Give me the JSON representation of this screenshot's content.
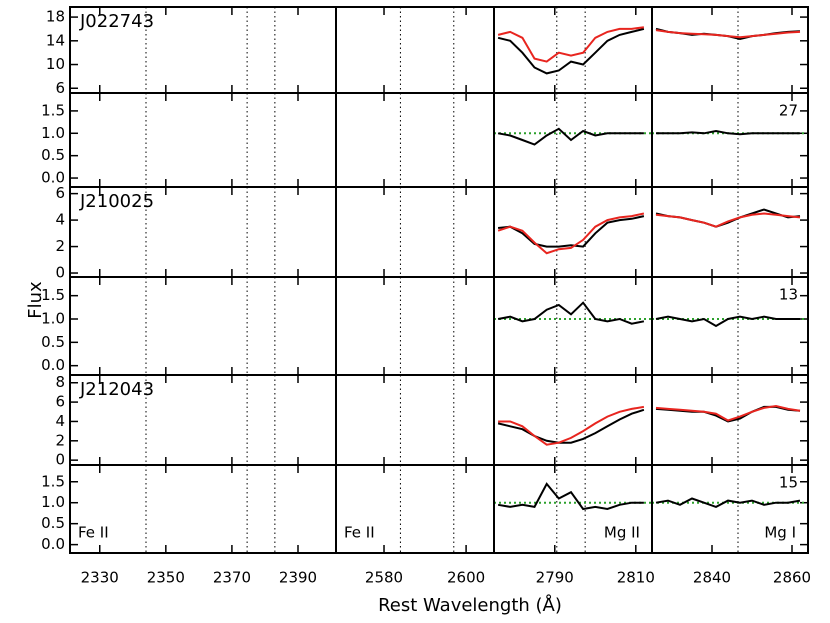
{
  "chart_data": {
    "type": "line",
    "xlabel": "Rest Wavelength (Å)",
    "ylabel": "Flux",
    "columns": [
      {
        "label": "Fe II",
        "label_corner": "bottom-left",
        "xlim": [
          2321,
          2401.5
        ],
        "xticks": [
          2330,
          2350,
          2370,
          2390
        ],
        "markers": [
          2344,
          2374.6,
          2383
        ]
      },
      {
        "label": "Fe II",
        "label_corner": "bottom-left",
        "xlim": [
          2568.3,
          2606.8
        ],
        "xticks": [
          2580,
          2600
        ],
        "markers": [
          2584,
          2597
        ]
      },
      {
        "label": "Mg II",
        "label_corner": "bottom-right",
        "xlim": [
          2775,
          2814
        ],
        "xticks": [
          2790,
          2810
        ],
        "markers": [
          2790.5,
          2797.5
        ],
        "x": [
          2776,
          2779,
          2782,
          2785,
          2788,
          2791,
          2794,
          2797,
          2800,
          2803,
          2806,
          2809,
          2812
        ]
      },
      {
        "label": "Mg I",
        "label_corner": "bottom-right",
        "xlim": [
          2825,
          2864
        ],
        "xticks": [
          2840,
          2860
        ],
        "markers": [
          2846.5
        ],
        "x": [
          2826,
          2829,
          2832,
          2835,
          2838,
          2841,
          2844,
          2847,
          2850,
          2853,
          2856,
          2859,
          2862
        ]
      }
    ],
    "rows": [
      {
        "name": "J022743",
        "snr": 27,
        "flux_ylim": [
          5.2,
          19.7
        ],
        "flux_yticks": [
          6,
          10,
          14,
          18
        ],
        "resid_ylim": [
          -0.2,
          1.9
        ],
        "resid_yticks": [
          {
            "value": 0,
            "label": "0.0"
          },
          0.5,
          {
            "value": 1,
            "label": "1.0"
          },
          1.5
        ],
        "reference": 1,
        "reference_color": "#2ca02c",
        "flux": [
          [],
          [],
          [
            {
              "color": "#000000",
              "values": [
                14.5,
                14,
                12,
                9.5,
                8.5,
                9,
                10.5,
                10,
                12,
                14,
                15,
                15.5,
                16
              ]
            },
            {
              "color": "#e8251f",
              "values": [
                15,
                15.5,
                14.5,
                11,
                10.5,
                12,
                11.5,
                12,
                14.5,
                15.5,
                16,
                16,
                16.3
              ]
            }
          ],
          [
            {
              "color": "#000000",
              "values": [
                16,
                15.5,
                15.3,
                15,
                15.2,
                15,
                14.8,
                14.3,
                14.8,
                15,
                15.3,
                15.5,
                15.6
              ]
            },
            {
              "color": "#e8251f",
              "values": [
                15.8,
                15.5,
                15.3,
                15.2,
                15.1,
                15,
                14.8,
                14.6,
                14.8,
                15,
                15.2,
                15.4,
                15.5
              ]
            }
          ]
        ],
        "residual": [
          [],
          [],
          [
            {
              "color": "#000000",
              "values": [
                1.0,
                0.95,
                0.85,
                0.75,
                0.95,
                1.1,
                0.85,
                1.05,
                0.95,
                1.0,
                1.0,
                1.0,
                1.0
              ]
            }
          ],
          [
            {
              "color": "#000000",
              "values": [
                1.0,
                1.0,
                1.0,
                1.02,
                1.0,
                1.05,
                1.0,
                0.98,
                1.0,
                1.0,
                1.0,
                1.0,
                1.0
              ]
            }
          ]
        ]
      },
      {
        "name": "J210025",
        "snr": 13,
        "flux_ylim": [
          -0.3,
          6.5
        ],
        "flux_yticks": [
          0,
          2,
          4,
          6
        ],
        "resid_ylim": [
          -0.2,
          1.9
        ],
        "resid_yticks": [
          {
            "value": 0,
            "label": "0.0"
          },
          0.5,
          {
            "value": 1,
            "label": "1.0"
          },
          1.5
        ],
        "reference": 1,
        "reference_color": "#2ca02c",
        "flux": [
          [],
          [],
          [
            {
              "color": "#000000",
              "values": [
                3.4,
                3.5,
                3,
                2.2,
                2,
                2,
                2.1,
                2,
                3,
                3.8,
                4,
                4.1,
                4.3
              ]
            },
            {
              "color": "#e8251f",
              "values": [
                3.2,
                3.5,
                3.2,
                2.3,
                1.5,
                1.8,
                1.9,
                2.5,
                3.5,
                4,
                4.2,
                4.3,
                4.5
              ]
            }
          ],
          [
            {
              "color": "#000000",
              "values": [
                4.5,
                4.3,
                4.2,
                4,
                3.8,
                3.5,
                3.8,
                4.2,
                4.5,
                4.8,
                4.5,
                4.2,
                4.3
              ]
            },
            {
              "color": "#e8251f",
              "values": [
                4.4,
                4.3,
                4.2,
                4.0,
                3.8,
                3.5,
                3.9,
                4.2,
                4.4,
                4.5,
                4.4,
                4.3,
                4.2
              ]
            }
          ]
        ],
        "residual": [
          [],
          [],
          [
            {
              "color": "#000000",
              "values": [
                1.0,
                1.05,
                0.95,
                1.0,
                1.2,
                1.3,
                1.1,
                1.35,
                1.0,
                0.95,
                1.0,
                0.9,
                0.95
              ]
            }
          ],
          [
            {
              "color": "#000000",
              "values": [
                1.0,
                1.05,
                1.0,
                0.95,
                1.0,
                0.85,
                1.0,
                1.05,
                1.0,
                1.05,
                1.0,
                1.0,
                1.0
              ]
            }
          ]
        ]
      },
      {
        "name": "J212043",
        "snr": 15,
        "flux_ylim": [
          -0.5,
          8.8
        ],
        "flux_yticks": [
          0,
          2,
          4,
          6,
          8
        ],
        "resid_ylim": [
          -0.2,
          1.9
        ],
        "resid_yticks": [
          {
            "value": 0,
            "label": "0.0"
          },
          0.5,
          {
            "value": 1,
            "label": "1.0"
          },
          1.5
        ],
        "reference": 1,
        "reference_color": "#2ca02c",
        "flux": [
          [],
          [],
          [
            {
              "color": "#000000",
              "values": [
                3.8,
                3.5,
                3.2,
                2.5,
                2,
                1.8,
                1.8,
                2.2,
                2.8,
                3.5,
                4.2,
                4.8,
                5.2
              ]
            },
            {
              "color": "#e8251f",
              "values": [
                4,
                4,
                3.5,
                2.5,
                1.6,
                1.8,
                2.3,
                3,
                3.8,
                4.5,
                5,
                5.3,
                5.5
              ]
            }
          ],
          [
            {
              "color": "#000000",
              "values": [
                5.3,
                5.2,
                5.1,
                5,
                5,
                4.6,
                4,
                4.3,
                5,
                5.5,
                5.5,
                5.2,
                5.1
              ]
            },
            {
              "color": "#e8251f",
              "values": [
                5.4,
                5.3,
                5.2,
                5.1,
                5,
                4.8,
                4.1,
                4.5,
                5,
                5.4,
                5.6,
                5.3,
                5.1
              ]
            }
          ]
        ],
        "residual": [
          [],
          [],
          [
            {
              "color": "#000000",
              "values": [
                0.95,
                0.9,
                0.95,
                0.9,
                1.45,
                1.1,
                1.25,
                0.85,
                0.9,
                0.85,
                0.95,
                1.0,
                1.0
              ]
            }
          ],
          [
            {
              "color": "#000000",
              "values": [
                1.0,
                1.05,
                0.95,
                1.1,
                1.0,
                0.9,
                1.05,
                1.0,
                1.05,
                0.95,
                1.0,
                1.0,
                1.05
              ]
            }
          ]
        ]
      }
    ]
  }
}
